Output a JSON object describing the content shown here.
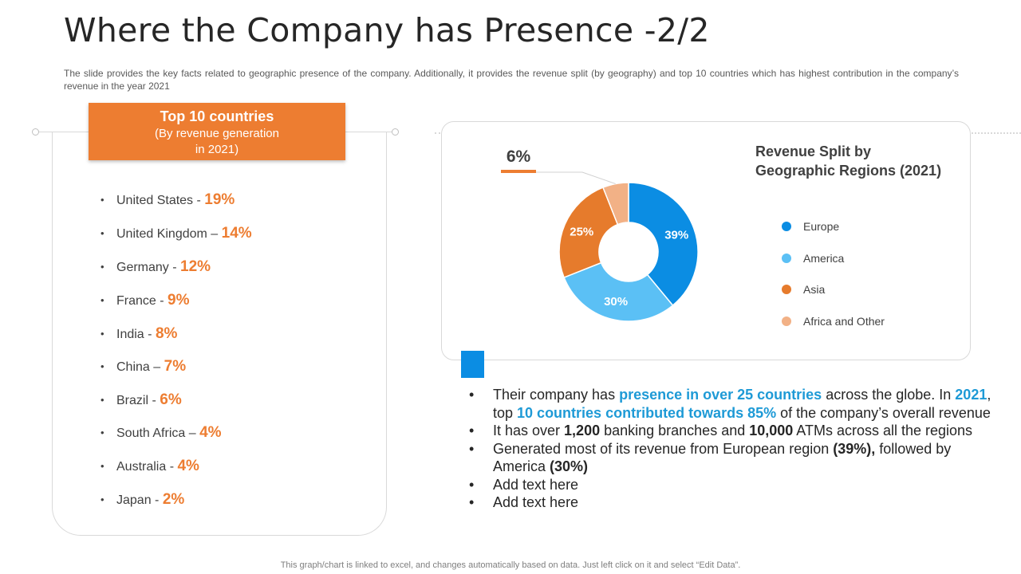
{
  "title": "Where the Company has Presence -2/2",
  "description": "The slide provides the key facts related to geographic presence of the company. Additionally, it provides the revenue split (by geography) and top 10 countries which has highest contribution in the company’s revenue in the year 2021",
  "top_countries": {
    "heading": "Top 10 countries",
    "sub_line1": "(By revenue generation",
    "sub_line2": "in 2021)",
    "items": [
      {
        "name": "United States",
        "sep": "-",
        "pct": "19%"
      },
      {
        "name": "United Kingdom",
        "sep": "–",
        "pct": "14%"
      },
      {
        "name": "Germany",
        "sep": "-",
        "pct": "12%"
      },
      {
        "name": "France",
        "sep": "-",
        "pct": "9%"
      },
      {
        "name": "India",
        "sep": "-",
        "pct": "8%"
      },
      {
        "name": "China",
        "sep": "–",
        "pct": "7%"
      },
      {
        "name": "Brazil",
        "sep": "-",
        "pct": "6%"
      },
      {
        "name": "South Africa",
        "sep": "–",
        "pct": "4%"
      },
      {
        "name": "Australia",
        "sep": "-",
        "pct": "4%"
      },
      {
        "name": "Japan",
        "sep": "-",
        "pct": "2%"
      }
    ]
  },
  "chart_data": {
    "type": "pie",
    "variant": "donut",
    "title_line1": "Revenue Split by",
    "title_line2": "Geographic Regions (2021)",
    "categories": [
      "Europe",
      "America",
      "Asia",
      "Africa and Other"
    ],
    "values": [
      39,
      30,
      25,
      6
    ],
    "labels": [
      "39%",
      "30%",
      "25%",
      "6%"
    ],
    "colors": [
      "#0b8de3",
      "#5bc0f5",
      "#e67b2c",
      "#f2b186"
    ],
    "legend_position": "right"
  },
  "bullets": {
    "b1_pre": "Their company has ",
    "b1_hl1": "presence in over 25 countries",
    "b1_mid1": " across the globe. In ",
    "b1_hl2": "2021",
    "b1_mid2": ", top ",
    "b1_hl3": "10 countries contributed towards 85%",
    "b1_post": " of the company’s overall revenue",
    "b2_pre": "It has over ",
    "b2_b1": "1,200",
    "b2_mid": " banking branches and ",
    "b2_b2": "10,000",
    "b2_post": " ATMs across all the regions",
    "b3_pre": "Generated most of its revenue from European region ",
    "b3_b1": "(39%),",
    "b3_mid": " followed by America ",
    "b3_b2": "(30%)",
    "b4": "Add text here",
    "b5": "Add text here"
  },
  "footer": "This graph/chart is linked to excel, and changes automatically based on data. Just left click on it and select “Edit Data”."
}
